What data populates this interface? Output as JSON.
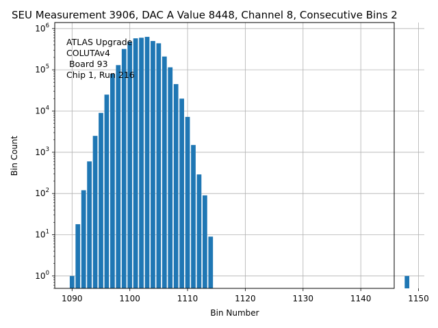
{
  "chart_data": {
    "type": "bar",
    "title": "SEU Measurement 3906, DAC A Value 8448, Channel 8, Consecutive Bins 2",
    "xlabel": "Bin Number",
    "ylabel": "Bin Count",
    "yscale": "log",
    "xlim": [
      1087,
      1151
    ],
    "ylim": [
      0.5,
      1400000
    ],
    "xticks": [
      1090,
      1100,
      1110,
      1120,
      1130,
      1140,
      1150
    ],
    "yticks": [
      {
        "value": 1,
        "base": "10",
        "exp": "0"
      },
      {
        "value": 10,
        "base": "10",
        "exp": "1"
      },
      {
        "value": 100,
        "base": "10",
        "exp": "2"
      },
      {
        "value": 1000,
        "base": "10",
        "exp": "3"
      },
      {
        "value": 10000,
        "base": "10",
        "exp": "4"
      },
      {
        "value": 100000,
        "base": "10",
        "exp": "5"
      },
      {
        "value": 1000000,
        "base": "10",
        "exp": "6"
      }
    ],
    "grid": true,
    "bar_color": "#1f77b4",
    "annotation": [
      "ATLAS Upgrade",
      "COLUTAv4",
      " Board 93",
      "Chip 1, Run 216"
    ],
    "x": [
      1090,
      1091,
      1092,
      1093,
      1094,
      1095,
      1096,
      1097,
      1098,
      1099,
      1100,
      1101,
      1102,
      1103,
      1104,
      1105,
      1106,
      1107,
      1108,
      1109,
      1110,
      1111,
      1112,
      1113,
      1114,
      1148
    ],
    "values": [
      1,
      18,
      120,
      600,
      2500,
      9000,
      25000,
      80000,
      130000,
      320000,
      480000,
      580000,
      600000,
      630000,
      500000,
      440000,
      210000,
      115000,
      45000,
      20000,
      7200,
      1500,
      290,
      90,
      9,
      1
    ]
  }
}
